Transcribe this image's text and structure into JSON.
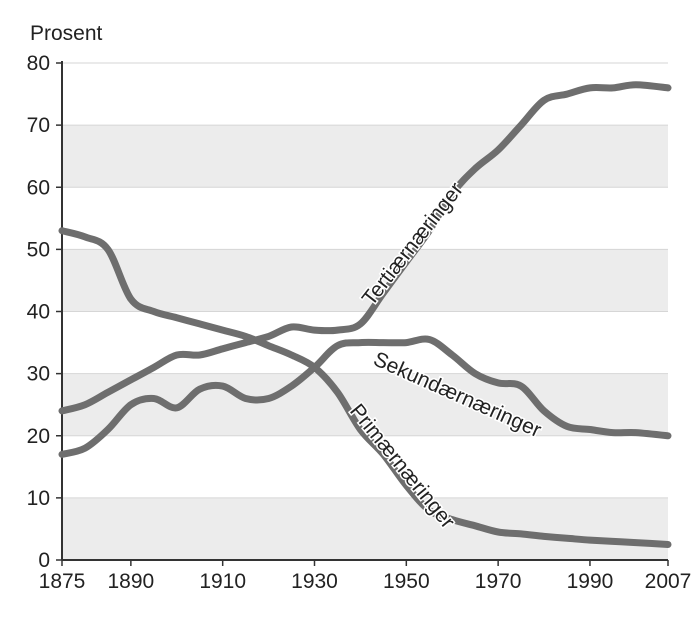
{
  "chart_data": {
    "type": "line",
    "ylabel": "Prosent",
    "xlabel": "",
    "ylim": [
      0,
      80
    ],
    "xlim": [
      1875,
      2007
    ],
    "xticks": [
      1875,
      1890,
      1910,
      1930,
      1950,
      1970,
      1990,
      2007
    ],
    "yticks": [
      0,
      10,
      20,
      30,
      40,
      50,
      60,
      70,
      80
    ],
    "grid": "horizontal alternating bands",
    "colors": {
      "line": "#6e6e6e",
      "band": "#ececec",
      "axis": "#333333"
    },
    "series": [
      {
        "name": "Primærnæringer",
        "x": [
          1875,
          1880,
          1885,
          1890,
          1895,
          1900,
          1905,
          1910,
          1915,
          1920,
          1925,
          1930,
          1935,
          1940,
          1945,
          1950,
          1955,
          1960,
          1965,
          1970,
          1975,
          1980,
          1985,
          1990,
          1995,
          2000,
          2007
        ],
        "y": [
          53,
          52,
          50,
          42,
          40,
          39,
          38,
          37,
          36,
          34.5,
          33,
          31,
          27,
          21,
          17,
          12,
          8,
          6.5,
          5.5,
          4.5,
          4.2,
          3.8,
          3.5,
          3.2,
          3,
          2.8,
          2.5
        ]
      },
      {
        "name": "Sekundærnæringer",
        "x": [
          1875,
          1880,
          1885,
          1890,
          1895,
          1900,
          1905,
          1910,
          1915,
          1920,
          1925,
          1930,
          1935,
          1940,
          1945,
          1950,
          1955,
          1960,
          1965,
          1970,
          1975,
          1980,
          1985,
          1990,
          1995,
          2000,
          2007
        ],
        "y": [
          17,
          18,
          21,
          25,
          26,
          24.5,
          27.5,
          28,
          26,
          26,
          28,
          31,
          34.5,
          35,
          35,
          35,
          35.5,
          33,
          30,
          28.5,
          28,
          24,
          21.5,
          21,
          20.5,
          20.5,
          20
        ]
      },
      {
        "name": "Tertiærnæringer",
        "x": [
          1875,
          1880,
          1885,
          1890,
          1895,
          1900,
          1905,
          1910,
          1915,
          1920,
          1925,
          1930,
          1935,
          1940,
          1945,
          1950,
          1955,
          1960,
          1965,
          1970,
          1975,
          1980,
          1985,
          1990,
          1995,
          2000,
          2007
        ],
        "y": [
          24,
          25,
          27,
          29,
          31,
          33,
          33,
          34,
          35,
          36,
          37.5,
          37,
          37,
          38,
          43,
          48,
          53,
          59,
          63,
          66,
          70,
          74,
          75,
          76,
          76,
          76.5,
          76
        ]
      }
    ]
  }
}
